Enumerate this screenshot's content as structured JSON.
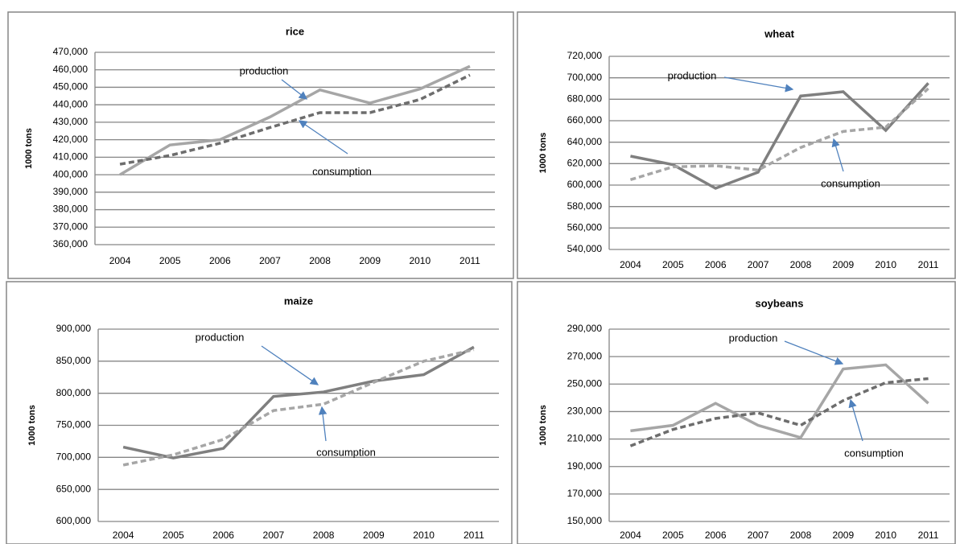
{
  "chart_data": [
    {
      "type": "line",
      "title": "rice",
      "y_label": "1000 tons",
      "grid": true,
      "categories": [
        "2004",
        "2005",
        "2006",
        "2007",
        "2008",
        "2009",
        "2010",
        "2011"
      ],
      "ylim": [
        360000,
        470000
      ],
      "yticks": [
        {
          "value": 360000,
          "label": "360,000"
        },
        {
          "value": 370000,
          "label": "370,000"
        },
        {
          "value": 380000,
          "label": "380,000"
        },
        {
          "value": 390000,
          "label": "390,000"
        },
        {
          "value": 400000,
          "label": "400,000"
        },
        {
          "value": 410000,
          "label": "410,000"
        },
        {
          "value": 420000,
          "label": "420,000"
        },
        {
          "value": 430000,
          "label": "430,000"
        },
        {
          "value": 440000,
          "label": "440,000"
        },
        {
          "value": 450000,
          "label": "450,000"
        },
        {
          "value": 460000,
          "label": "460,000"
        },
        {
          "value": 470000,
          "label": "470,000"
        }
      ],
      "series": [
        {
          "name": "production",
          "color": "#a6a6a6",
          "linestyle": "solid",
          "values": [
            400000,
            417000,
            420000,
            433000,
            448500,
            441000,
            449000,
            462000
          ]
        },
        {
          "name": "consumption",
          "color": "#6d6d6d",
          "linestyle": "dashed",
          "values": [
            406000,
            411000,
            418000,
            427000,
            435500,
            435500,
            443000,
            457000
          ]
        }
      ]
    },
    {
      "type": "line",
      "title": "wheat",
      "y_label": "1000 tons",
      "grid": true,
      "categories": [
        "2004",
        "2005",
        "2006",
        "2007",
        "2008",
        "2009",
        "2010",
        "2011"
      ],
      "ylim": [
        540000,
        720000
      ],
      "yticks": [
        {
          "value": 540000,
          "label": "540,000"
        },
        {
          "value": 560000,
          "label": "560,000"
        },
        {
          "value": 580000,
          "label": "580,000"
        },
        {
          "value": 600000,
          "label": "600,000"
        },
        {
          "value": 620000,
          "label": "620,000"
        },
        {
          "value": 640000,
          "label": "640,000"
        },
        {
          "value": 660000,
          "label": "660,000"
        },
        {
          "value": 680000,
          "label": "680,000"
        },
        {
          "value": 700000,
          "label": "700,000"
        },
        {
          "value": 720000,
          "label": "720,000"
        }
      ],
      "series": [
        {
          "name": "production",
          "color": "#7f7f7f",
          "linestyle": "solid",
          "values": [
            627000,
            619000,
            597000,
            612000,
            683000,
            687000,
            651000,
            695000
          ]
        },
        {
          "name": "consumption",
          "color": "#a6a6a6",
          "linestyle": "dashed",
          "values": [
            605000,
            617000,
            618000,
            614000,
            635000,
            650000,
            654000,
            690000
          ]
        }
      ]
    },
    {
      "type": "line",
      "title": "maize",
      "y_label": "1000 tons",
      "grid": true,
      "categories": [
        "2004",
        "2005",
        "2006",
        "2007",
        "2008",
        "2009",
        "2010",
        "2011"
      ],
      "ylim": [
        600000,
        900000
      ],
      "yticks": [
        {
          "value": 600000,
          "label": "600,000"
        },
        {
          "value": 650000,
          "label": "650,000"
        },
        {
          "value": 700000,
          "label": "700,000"
        },
        {
          "value": 750000,
          "label": "750,000"
        },
        {
          "value": 800000,
          "label": "800,000"
        },
        {
          "value": 850000,
          "label": "850,000"
        },
        {
          "value": 900000,
          "label": "900,000"
        }
      ],
      "series": [
        {
          "name": "production",
          "color": "#7f7f7f",
          "linestyle": "solid",
          "values": [
            716000,
            699000,
            714000,
            795000,
            802000,
            819000,
            829000,
            872000
          ]
        },
        {
          "name": "consumption",
          "color": "#a6a6a6",
          "linestyle": "dashed",
          "values": [
            688000,
            704000,
            728000,
            773000,
            783000,
            817000,
            850000,
            868000
          ]
        }
      ]
    },
    {
      "type": "line",
      "title": "soybeans",
      "y_label": "1000 tons",
      "grid": true,
      "categories": [
        "2004",
        "2005",
        "2006",
        "2007",
        "2008",
        "2009",
        "2010",
        "2011"
      ],
      "ylim": [
        150000,
        290000
      ],
      "yticks": [
        {
          "value": 150000,
          "label": "150,000"
        },
        {
          "value": 170000,
          "label": "170,000"
        },
        {
          "value": 190000,
          "label": "190,000"
        },
        {
          "value": 210000,
          "label": "210,000"
        },
        {
          "value": 230000,
          "label": "230,000"
        },
        {
          "value": 250000,
          "label": "250,000"
        },
        {
          "value": 270000,
          "label": "270,000"
        },
        {
          "value": 290000,
          "label": "290,000"
        }
      ],
      "series": [
        {
          "name": "production",
          "color": "#a6a6a6",
          "linestyle": "solid",
          "values": [
            216000,
            220000,
            236000,
            220000,
            211000,
            261000,
            264000,
            236000
          ]
        },
        {
          "name": "consumption",
          "color": "#6d6d6d",
          "linestyle": "dashed",
          "values": [
            205000,
            217000,
            225000,
            229000,
            220000,
            238000,
            251000,
            254000
          ]
        }
      ]
    }
  ]
}
